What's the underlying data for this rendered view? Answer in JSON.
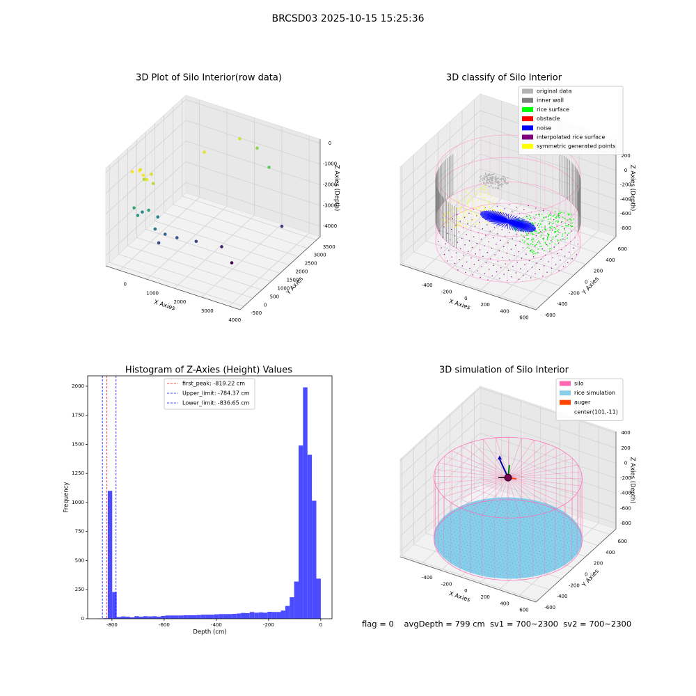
{
  "title": "BRCSD03 2025-10-15 15:25:36",
  "footer": "flag = 0    avgDepth = 799 cm  sv1 = 700~2300  sv2 = 700~2300",
  "chart_data": [
    {
      "type": "scatter3d",
      "title": "3D Plot of Silo Interior(row data)",
      "xlabel": "X Axies",
      "ylabel": "Y Axies",
      "zlabel": "Z Axies (Depth)",
      "xlim": [
        -500,
        4400
      ],
      "ylim": [
        -700,
        3700
      ],
      "zlim": [
        -4500,
        200
      ],
      "xticks": [
        0,
        1000,
        2000,
        3000,
        4000
      ],
      "yticks": [
        -500,
        0,
        500,
        1000,
        1500,
        2000,
        2500,
        3000,
        3500
      ],
      "zticks": [
        -4000,
        -3000,
        -2000,
        -1000,
        0
      ],
      "colormap": "viridis",
      "x": [
        0,
        200,
        400,
        600,
        100,
        500,
        300,
        700,
        1300,
        1800,
        2300,
        3000,
        200,
        400,
        600,
        300,
        800,
        900,
        1200,
        1500,
        2000,
        2600,
        3800,
        3100,
        1100
      ],
      "y": [
        0,
        100,
        0,
        -100,
        300,
        300,
        200,
        100,
        2000,
        3200,
        3400,
        3000,
        -200,
        -300,
        0,
        100,
        200,
        -100,
        0,
        200,
        500,
        1000,
        2500,
        800,
        -200
      ],
      "z": [
        -300,
        -250,
        -300,
        -350,
        -400,
        -450,
        -700,
        -650,
        -400,
        -500,
        -900,
        -1200,
        -1800,
        -2000,
        -1900,
        -2200,
        -2300,
        -2600,
        -2800,
        -3000,
        -3200,
        -3600,
        -3300,
        -4000,
        -3100
      ]
    },
    {
      "type": "classify3d",
      "title": "3D classify of Silo Interior",
      "xlabel": "X Axies",
      "ylabel": "Y Axies",
      "zlabel": "Z Axies (Depth)",
      "xlim": [
        -620,
        780
      ],
      "ylim": [
        -625,
        700
      ],
      "zlim": [
        -915,
        430
      ],
      "xticks": [
        -400,
        -200,
        0,
        200,
        400,
        600
      ],
      "yticks": [
        -600,
        -400,
        -200,
        0,
        200,
        400,
        600
      ],
      "zticks": [
        -800,
        -600,
        -400,
        -200,
        0,
        200
      ],
      "legend": [
        {
          "name": "original data",
          "color": "#b3b3b3"
        },
        {
          "name": "inner wall",
          "color": "#808080"
        },
        {
          "name": "rice surface",
          "color": "#00ff00"
        },
        {
          "name": "obstacle",
          "color": "#ff0000"
        },
        {
          "name": "noise",
          "color": "#0000ff"
        },
        {
          "name": "interpolated rice surface",
          "color": "#800080"
        },
        {
          "name": "symmetric generated points",
          "color": "#ffff00"
        }
      ]
    },
    {
      "type": "histogram",
      "title": "Histogram of Z-Axies (Height) Values",
      "xlabel": "Depth (cm)",
      "ylabel": "Frequency",
      "xlim": [
        -893,
        43
      ],
      "ylim": [
        0,
        2089
      ],
      "xticks": [
        -800,
        -600,
        -400,
        -200,
        0
      ],
      "yticks": [
        0,
        250,
        500,
        750,
        1000,
        1250,
        1500,
        1750,
        2000
      ],
      "color": "#4b4bff",
      "bins": [
        -850,
        -833,
        -816,
        -799,
        -782,
        -765,
        -748,
        -731,
        -714,
        -697,
        -680,
        -663,
        -646,
        -629,
        -612,
        -595,
        -578,
        -561,
        -544,
        -527,
        -510,
        -493,
        -476,
        -459,
        -442,
        -425,
        -408,
        -391,
        -374,
        -357,
        -340,
        -323,
        -306,
        -289,
        -272,
        -255,
        -238,
        -221,
        -204,
        -187,
        -170,
        -153,
        -136,
        -119,
        -102,
        -85,
        -68,
        -51,
        -34,
        -17,
        0
      ],
      "values": [
        3,
        5,
        1100,
        230,
        15,
        20,
        18,
        12,
        22,
        18,
        22,
        20,
        22,
        18,
        25,
        28,
        28,
        28,
        28,
        30,
        30,
        30,
        32,
        35,
        35,
        35,
        38,
        40,
        40,
        40,
        42,
        45,
        50,
        48,
        58,
        52,
        55,
        52,
        60,
        58,
        58,
        70,
        110,
        185,
        320,
        1490,
        1990,
        1410,
        1015,
        345
      ],
      "vlines": [
        {
          "label": "first_peak: -819.22 cm",
          "value": -819.22,
          "color": "#ff0000"
        },
        {
          "label": "Upper_limit: -784.37 cm",
          "value": -784.37,
          "color": "#0000ff"
        },
        {
          "label": "Lower_limit: -836.65 cm",
          "value": -836.65,
          "color": "#0000ff"
        }
      ]
    },
    {
      "type": "simulation3d",
      "title": "3D simulation of Silo Interior",
      "xlabel": "X Axies",
      "ylabel": "Y Axies",
      "zlabel": "Z Axies (Depth)",
      "xlim": [
        -620,
        780
      ],
      "ylim": [
        -625,
        700
      ],
      "zlim": [
        -875,
        420
      ],
      "xticks": [
        -400,
        -200,
        0,
        200,
        400,
        600
      ],
      "yticks": [
        -600,
        -400,
        -200,
        0,
        200,
        400,
        600
      ],
      "zticks": [
        -800,
        -600,
        -400,
        -200,
        0,
        200,
        400
      ],
      "legend": [
        {
          "name": "silo",
          "color": "#ff69b4"
        },
        {
          "name": "rice simulation",
          "color": "#87ceeb"
        },
        {
          "name": "auger",
          "color": "#ff4500"
        },
        {
          "name": "center(101,-11)"
        }
      ]
    }
  ]
}
